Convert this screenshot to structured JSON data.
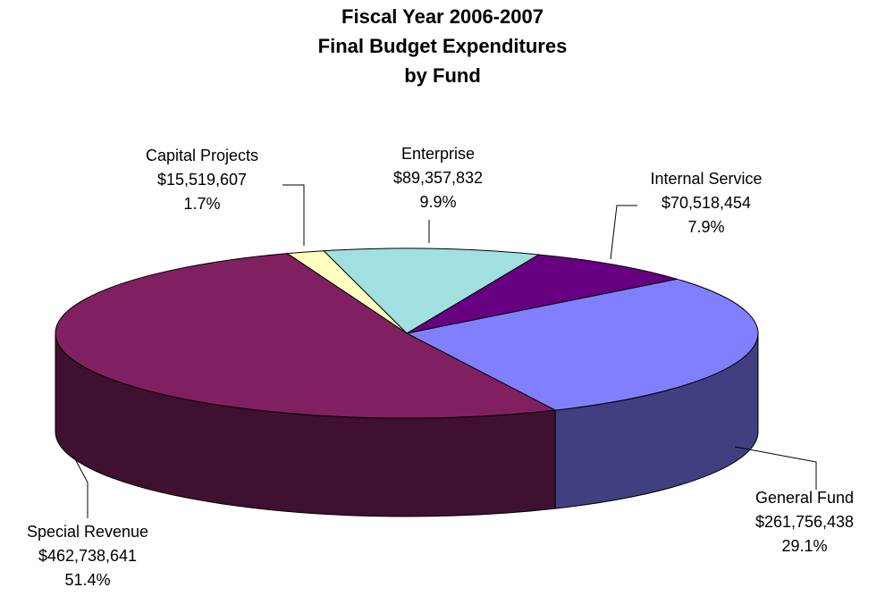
{
  "chart_data": {
    "type": "pie3d",
    "title": [
      "Fiscal Year 2006-2007",
      "Final Budget Expenditures",
      "by Fund"
    ],
    "categories": [
      "General Fund",
      "Internal Service",
      "Enterprise",
      "Capital Projects",
      "Special Revenue"
    ],
    "values": [
      261756438,
      70518454,
      89357832,
      15519607,
      462738641
    ],
    "value_labels": [
      "$261,756,438",
      "$70,518,454",
      "$89,357,832",
      "$15,519,607",
      "$462,738,641"
    ],
    "percents": [
      29.1,
      7.9,
      9.9,
      1.7,
      51.4
    ],
    "percent_labels": [
      "29.1%",
      "7.9%",
      "9.9%",
      "1.7%",
      "51.4%"
    ],
    "colors": [
      "#8080ff",
      "#660080",
      "#a0e0e0",
      "#ffffc0",
      "#802060"
    ]
  }
}
